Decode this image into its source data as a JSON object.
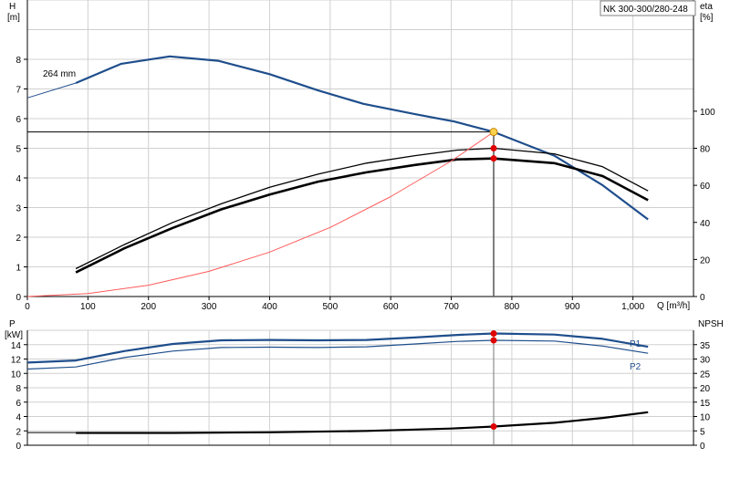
{
  "header": {
    "pump_model": "NK 300-300/280-248"
  },
  "colors": {
    "head_curve": "#1f4e8c",
    "efficiency_curve": "#000000",
    "npsh_curve": "#000000",
    "system_curve": "#ff5a5a",
    "grid": "#d0d0d0",
    "duty_point_fill": "#ffd24d",
    "duty_marker": "#e00000"
  },
  "chart_data": [
    {
      "type": "line",
      "title": "",
      "xlabel": "Q [m³/h]",
      "ylabel": "H [m]",
      "ylabel_line1": "H",
      "ylabel_line2": "[m]",
      "y2label_line1": "eta",
      "y2label_line2": "[%]",
      "xlim": [
        0,
        1100
      ],
      "ylim": [
        0,
        10
      ],
      "y2lim": [
        0,
        160
      ],
      "x_ticks": [
        0,
        100,
        200,
        300,
        400,
        500,
        600,
        700,
        800,
        900,
        1000
      ],
      "x_tick_labels": [
        "0",
        "100",
        "200",
        "300",
        "400",
        "500",
        "600",
        "700",
        "800",
        "900",
        "1,000"
      ],
      "y_ticks": [
        0,
        1,
        2,
        3,
        4,
        5,
        6,
        7,
        8
      ],
      "y2_ticks": [
        0,
        20,
        40,
        60,
        80,
        100
      ],
      "grid": true,
      "impeller_label": "264 mm",
      "duty_point": {
        "x": 770,
        "y": 5.55
      },
      "series": [
        {
          "key": "head",
          "axis": "left",
          "x": [
            80,
            155,
            235,
            315,
            400,
            480,
            555,
            640,
            705,
            770,
            870,
            950,
            1025
          ],
          "y": [
            7.2,
            7.85,
            8.1,
            7.95,
            7.5,
            6.95,
            6.5,
            6.15,
            5.9,
            5.55,
            4.75,
            3.75,
            2.6
          ]
        },
        {
          "key": "head_extension",
          "axis": "left",
          "x": [
            0,
            80
          ],
          "y": [
            6.7,
            7.2
          ]
        },
        {
          "key": "eta_upper",
          "axis": "right",
          "x": [
            80,
            160,
            240,
            320,
            400,
            480,
            560,
            640,
            710,
            770,
            870,
            950,
            1025
          ],
          "y": [
            15,
            28,
            40,
            50,
            59,
            66,
            72,
            76,
            79,
            80,
            77,
            70,
            57
          ]
        },
        {
          "key": "eta_lower",
          "axis": "right",
          "x": [
            80,
            160,
            240,
            320,
            400,
            480,
            560,
            640,
            710,
            770,
            870,
            950,
            1025
          ],
          "y": [
            13,
            26,
            37,
            47,
            55,
            62,
            67,
            71,
            74,
            74.5,
            72,
            65,
            52
          ]
        },
        {
          "key": "system_curve",
          "axis": "left",
          "x": [
            0,
            100,
            200,
            300,
            400,
            500,
            600,
            700,
            770
          ],
          "y": [
            0,
            0.1,
            0.38,
            0.85,
            1.5,
            2.33,
            3.37,
            4.57,
            5.55
          ]
        }
      ],
      "markers": [
        {
          "axis": "left",
          "x": 770,
          "y": 5.55,
          "style": "duty"
        },
        {
          "axis": "right",
          "x": 770,
          "y": 80,
          "style": "red"
        },
        {
          "axis": "right",
          "x": 770,
          "y": 74.5,
          "style": "red"
        }
      ]
    },
    {
      "type": "line",
      "title": "",
      "xlabel": "",
      "ylabel": "P [kW]",
      "ylabel_line1": "P",
      "ylabel_line2": "[kW]",
      "y2label": "NPSH",
      "xlim": [
        0,
        1100
      ],
      "ylim": [
        0,
        16
      ],
      "y2lim": [
        0,
        40
      ],
      "y_ticks": [
        0,
        2,
        4,
        6,
        8,
        10,
        12,
        14
      ],
      "y2_ticks": [
        0,
        5,
        10,
        15,
        20,
        25,
        30,
        35
      ],
      "grid": true,
      "series": [
        {
          "key": "P1",
          "name": "P1",
          "axis": "left",
          "x": [
            0,
            80,
            160,
            240,
            320,
            400,
            480,
            560,
            640,
            710,
            770,
            870,
            950,
            1025
          ],
          "y": [
            11.5,
            11.8,
            13.1,
            14.1,
            14.6,
            14.65,
            14.6,
            14.65,
            15.0,
            15.35,
            15.55,
            15.4,
            14.8,
            13.7
          ]
        },
        {
          "key": "P2",
          "name": "P2",
          "axis": "left",
          "x": [
            0,
            80,
            160,
            240,
            320,
            400,
            480,
            560,
            640,
            710,
            770,
            870,
            950,
            1025
          ],
          "y": [
            10.6,
            10.9,
            12.2,
            13.1,
            13.6,
            13.65,
            13.6,
            13.7,
            14.1,
            14.45,
            14.6,
            14.5,
            13.8,
            12.8
          ]
        },
        {
          "key": "npsh_extension",
          "axis": "right",
          "x": [
            0,
            80
          ],
          "y": [
            4.4,
            4.4
          ]
        },
        {
          "key": "npsh",
          "axis": "right",
          "x": [
            80,
            240,
            400,
            560,
            700,
            770,
            870,
            950,
            1025
          ],
          "y": [
            4.3,
            4.3,
            4.5,
            5.0,
            5.8,
            6.5,
            7.8,
            9.5,
            11.5
          ]
        }
      ],
      "markers": [
        {
          "axis": "left",
          "x": 770,
          "y": 15.55,
          "style": "red"
        },
        {
          "axis": "left",
          "x": 770,
          "y": 14.6,
          "style": "red"
        },
        {
          "axis": "right",
          "x": 770,
          "y": 6.5,
          "style": "red"
        }
      ]
    }
  ]
}
